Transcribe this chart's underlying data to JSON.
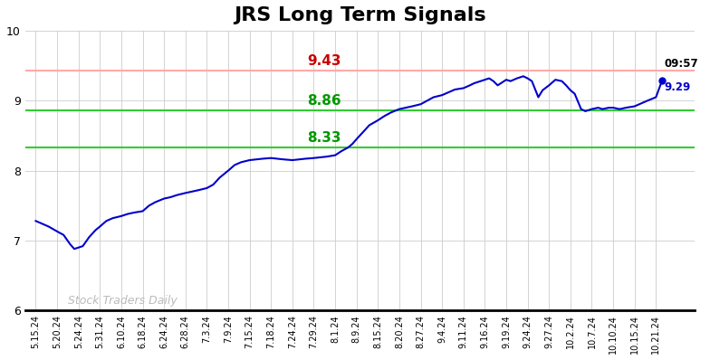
{
  "title": "JRS Long Term Signals",
  "title_fontsize": 16,
  "background_color": "#ffffff",
  "plot_bg_color": "#ffffff",
  "grid_color": "#cccccc",
  "line_color": "#0000cc",
  "line_width": 1.5,
  "ylim": [
    6,
    10
  ],
  "yticks": [
    6,
    7,
    8,
    9,
    10
  ],
  "red_line": 9.43,
  "red_line_color": "#ffaaaa",
  "green_line1": 8.86,
  "green_line2": 8.33,
  "green_line_color": "#33cc33",
  "label_9_43_color": "#cc0000",
  "label_8_86_color": "#009900",
  "label_8_33_color": "#009900",
  "last_price": 9.29,
  "last_time": "09:57",
  "last_dot_color": "#0000cc",
  "watermark_text": "Stock Traders Daily",
  "watermark_color": "#bbbbbb",
  "x_labels": [
    "5.15.24",
    "5.20.24",
    "5.24.24",
    "5.31.24",
    "6.10.24",
    "6.18.24",
    "6.24.24",
    "6.28.24",
    "7.3.24",
    "7.9.24",
    "7.15.24",
    "7.18.24",
    "7.24.24",
    "7.29.24",
    "8.1.24",
    "8.9.24",
    "8.15.24",
    "8.20.24",
    "8.27.24",
    "9.4.24",
    "9.11.24",
    "9.16.24",
    "9.19.24",
    "9.24.24",
    "9.27.24",
    "10.2.24",
    "10.7.24",
    "10.10.24",
    "10.15.24",
    "10.21.24"
  ],
  "price_data": [
    [
      0,
      7.28
    ],
    [
      0.3,
      7.24
    ],
    [
      0.6,
      7.2
    ],
    [
      1.0,
      7.13
    ],
    [
      1.3,
      7.08
    ],
    [
      1.6,
      6.95
    ],
    [
      1.8,
      6.88
    ],
    [
      2.2,
      6.92
    ],
    [
      2.5,
      7.05
    ],
    [
      2.8,
      7.15
    ],
    [
      3.0,
      7.2
    ],
    [
      3.3,
      7.28
    ],
    [
      3.6,
      7.32
    ],
    [
      4.0,
      7.35
    ],
    [
      4.3,
      7.38
    ],
    [
      4.6,
      7.4
    ],
    [
      5.0,
      7.42
    ],
    [
      5.3,
      7.5
    ],
    [
      5.6,
      7.55
    ],
    [
      6.0,
      7.6
    ],
    [
      6.3,
      7.62
    ],
    [
      6.6,
      7.65
    ],
    [
      7.0,
      7.68
    ],
    [
      7.3,
      7.7
    ],
    [
      7.6,
      7.72
    ],
    [
      8.0,
      7.75
    ],
    [
      8.3,
      7.8
    ],
    [
      8.6,
      7.9
    ],
    [
      9.0,
      8.0
    ],
    [
      9.3,
      8.08
    ],
    [
      9.6,
      8.12
    ],
    [
      10.0,
      8.15
    ],
    [
      10.3,
      8.16
    ],
    [
      10.6,
      8.17
    ],
    [
      11.0,
      8.18
    ],
    [
      11.3,
      8.17
    ],
    [
      11.6,
      8.16
    ],
    [
      12.0,
      8.15
    ],
    [
      12.3,
      8.16
    ],
    [
      12.6,
      8.17
    ],
    [
      13.0,
      8.18
    ],
    [
      13.3,
      8.19
    ],
    [
      13.6,
      8.2
    ],
    [
      14.0,
      8.22
    ],
    [
      14.3,
      8.28
    ],
    [
      14.6,
      8.33
    ],
    [
      14.8,
      8.38
    ],
    [
      15.0,
      8.45
    ],
    [
      15.3,
      8.55
    ],
    [
      15.6,
      8.65
    ],
    [
      16.0,
      8.72
    ],
    [
      16.3,
      8.78
    ],
    [
      16.6,
      8.83
    ],
    [
      17.0,
      8.88
    ],
    [
      17.3,
      8.9
    ],
    [
      17.6,
      8.92
    ],
    [
      18.0,
      8.95
    ],
    [
      18.3,
      9.0
    ],
    [
      18.6,
      9.05
    ],
    [
      19.0,
      9.08
    ],
    [
      19.3,
      9.12
    ],
    [
      19.6,
      9.16
    ],
    [
      20.0,
      9.18
    ],
    [
      20.3,
      9.22
    ],
    [
      20.5,
      9.25
    ],
    [
      20.8,
      9.28
    ],
    [
      21.0,
      9.3
    ],
    [
      21.2,
      9.32
    ],
    [
      21.4,
      9.28
    ],
    [
      21.6,
      9.22
    ],
    [
      21.8,
      9.26
    ],
    [
      22.0,
      9.3
    ],
    [
      22.2,
      9.28
    ],
    [
      22.5,
      9.32
    ],
    [
      22.8,
      9.35
    ],
    [
      23.0,
      9.32
    ],
    [
      23.2,
      9.28
    ],
    [
      23.5,
      9.05
    ],
    [
      23.7,
      9.15
    ],
    [
      24.0,
      9.22
    ],
    [
      24.3,
      9.3
    ],
    [
      24.6,
      9.28
    ],
    [
      24.8,
      9.22
    ],
    [
      25.0,
      9.15
    ],
    [
      25.2,
      9.1
    ],
    [
      25.5,
      8.88
    ],
    [
      25.7,
      8.85
    ],
    [
      26.0,
      8.88
    ],
    [
      26.3,
      8.9
    ],
    [
      26.5,
      8.88
    ],
    [
      26.8,
      8.9
    ],
    [
      27.0,
      8.9
    ],
    [
      27.3,
      8.88
    ],
    [
      27.6,
      8.9
    ],
    [
      28.0,
      8.92
    ],
    [
      28.3,
      8.96
    ],
    [
      28.6,
      9.0
    ],
    [
      29.0,
      9.05
    ],
    [
      29.29,
      9.29
    ]
  ]
}
